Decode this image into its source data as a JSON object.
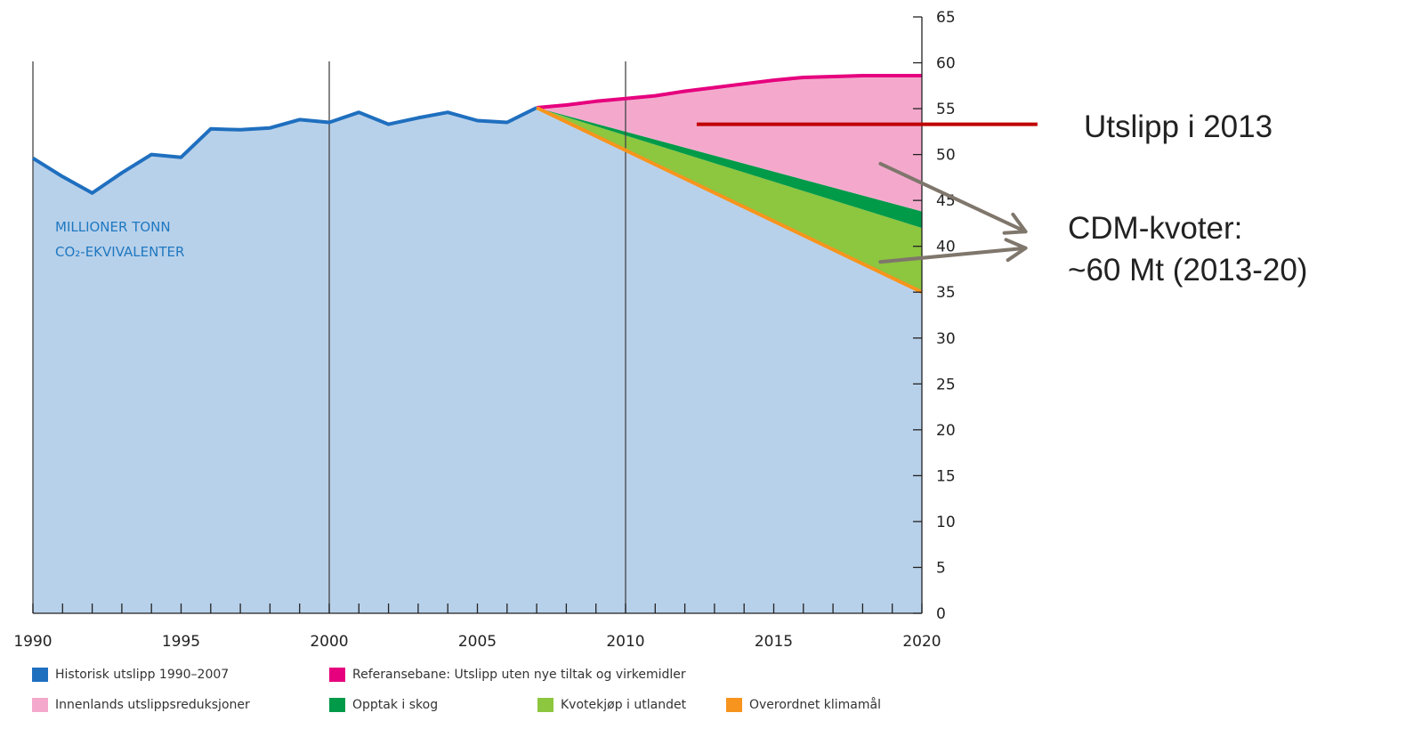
{
  "chart_data": {
    "type": "area",
    "x_ticks": [
      1990,
      1995,
      2000,
      2005,
      2010,
      2015,
      2020
    ],
    "y_ticks": [
      0,
      5,
      10,
      15,
      20,
      25,
      30,
      35,
      40,
      45,
      50,
      55,
      60,
      65
    ],
    "xlim": [
      1990,
      2020
    ],
    "ylim": [
      0,
      65
    ],
    "y_axis_position": "right",
    "unit_label_line1": "MILLIONER TONN",
    "unit_label_line2": "CO₂-EKVIVALENTER",
    "series": [
      {
        "name": "Historisk utslipp 1990–2007",
        "color": "#1f6fbf",
        "x": [
          1990,
          1991,
          1992,
          1993,
          1994,
          1995,
          1996,
          1997,
          1998,
          1999,
          2000,
          2001,
          2002,
          2003,
          2004,
          2005,
          2006,
          2007
        ],
        "values": [
          49.6,
          47.6,
          45.8,
          48.0,
          50.0,
          49.7,
          52.8,
          52.7,
          52.9,
          53.8,
          53.5,
          54.6,
          53.3,
          54.0,
          54.6,
          53.7,
          53.5,
          55.1
        ]
      },
      {
        "name": "Referansebane: Utslipp uten nye tiltak og virkemidler",
        "color": "#e6007e",
        "x": [
          2007,
          2008,
          2009,
          2010,
          2011,
          2012,
          2013,
          2014,
          2015,
          2016,
          2017,
          2018,
          2019,
          2020
        ],
        "values": [
          55.1,
          55.4,
          55.8,
          56.1,
          56.4,
          56.9,
          57.3,
          57.7,
          58.1,
          58.4,
          58.5,
          58.6,
          58.6,
          58.6
        ]
      },
      {
        "name": "Innenlands utslippsreduksjoner",
        "color": "#f4a9cc",
        "x": [
          2007,
          2020
        ],
        "values": [
          55.1,
          43.8
        ]
      },
      {
        "name": "Opptak i skog",
        "color": "#009a49",
        "x": [
          2007,
          2020
        ],
        "values": [
          55.1,
          42.0
        ]
      },
      {
        "name": "Kvotekjøp i utlandet",
        "color": "#8dc63f",
        "x": [
          2007,
          2020
        ],
        "values": [
          55.1,
          35.0
        ]
      },
      {
        "name": "Overordnet klimamål",
        "color": "#f7941d",
        "x": [
          2007,
          2020
        ],
        "values": [
          55.1,
          35.0
        ]
      }
    ],
    "reference_line": {
      "label": "Utslipp i 2013",
      "value": 53.3,
      "x_start": 2012.4,
      "x_end": 2023.9,
      "color": "#c00000"
    },
    "annotation": {
      "line1": "CDM-kvoter:",
      "line2": "~60 Mt (2013-20)",
      "arrow_color": "#7f766c",
      "arrows": [
        {
          "from": [
            2018.6,
            49.0
          ],
          "to": [
            2023.5,
            41.6
          ]
        },
        {
          "from": [
            2018.6,
            38.3
          ],
          "to": [
            2023.5,
            39.8
          ]
        }
      ]
    },
    "vertical_gridlines": [
      1990,
      2000,
      2010
    ],
    "area_fill_color": "#b8d1ea"
  },
  "legend": {
    "historisk": "Historisk utslipp 1990–2007",
    "referanse": "Referansebane: Utslipp uten nye tiltak og virkemidler",
    "innenlands": "Innenlands utslippsreduksjoner",
    "skog": "Opptak i skog",
    "kvote": "Kvotekjøp i utlandet",
    "klimamal": "Overordnet klimamål"
  },
  "legend_colors": {
    "historisk": "#1f6fbf",
    "referanse": "#e6007e",
    "innenlands": "#f4a9cc",
    "skog": "#009a49",
    "kvote": "#8dc63f",
    "klimamal": "#f7941d"
  }
}
